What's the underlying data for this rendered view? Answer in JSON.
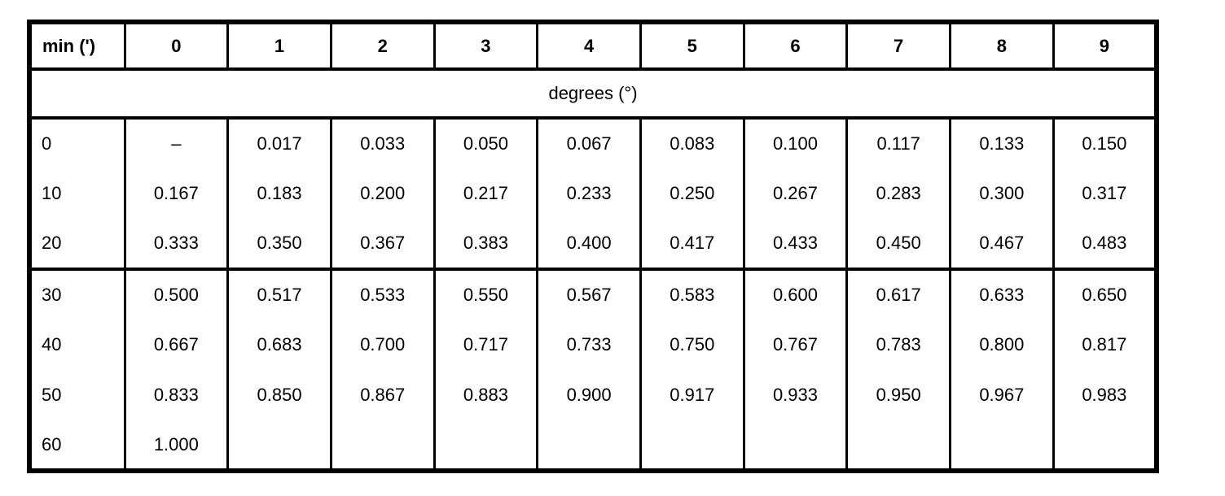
{
  "colors": {
    "background": "#ffffff",
    "border": "#000000",
    "text": "#000000"
  },
  "table": {
    "corner_header": "min (')",
    "column_headers": [
      "0",
      "1",
      "2",
      "3",
      "4",
      "5",
      "6",
      "7",
      "8",
      "9"
    ],
    "span_header": "degrees (°)",
    "section_breaks": [
      3
    ],
    "rows": [
      {
        "label": "0",
        "values": [
          "–",
          "0.017",
          "0.033",
          "0.050",
          "0.067",
          "0.083",
          "0.100",
          "0.117",
          "0.133",
          "0.150"
        ]
      },
      {
        "label": "10",
        "values": [
          "0.167",
          "0.183",
          "0.200",
          "0.217",
          "0.233",
          "0.250",
          "0.267",
          "0.283",
          "0.300",
          "0.317"
        ]
      },
      {
        "label": "20",
        "values": [
          "0.333",
          "0.350",
          "0.367",
          "0.383",
          "0.400",
          "0.417",
          "0.433",
          "0.450",
          "0.467",
          "0.483"
        ]
      },
      {
        "label": "30",
        "values": [
          "0.500",
          "0.517",
          "0.533",
          "0.550",
          "0.567",
          "0.583",
          "0.600",
          "0.617",
          "0.633",
          "0.650"
        ]
      },
      {
        "label": "40",
        "values": [
          "0.667",
          "0.683",
          "0.700",
          "0.717",
          "0.733",
          "0.750",
          "0.767",
          "0.783",
          "0.800",
          "0.817"
        ]
      },
      {
        "label": "50",
        "values": [
          "0.833",
          "0.850",
          "0.867",
          "0.883",
          "0.900",
          "0.917",
          "0.933",
          "0.950",
          "0.967",
          "0.983"
        ]
      },
      {
        "label": "60",
        "values": [
          "1.000",
          "",
          "",
          "",
          "",
          "",
          "",
          "",
          "",
          ""
        ]
      }
    ]
  }
}
